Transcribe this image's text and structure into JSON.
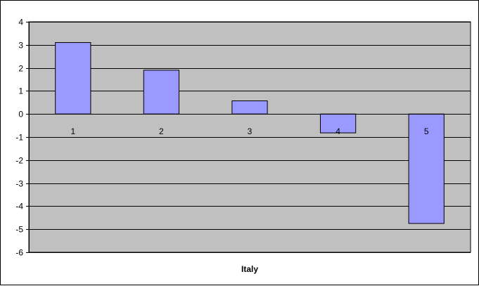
{
  "chart_data": {
    "type": "bar",
    "title": "",
    "xlabel": "Italy",
    "ylabel": "",
    "categories": [
      "1",
      "2",
      "3",
      "4",
      "5"
    ],
    "values": [
      3.1,
      1.9,
      0.57,
      -0.82,
      -4.75
    ],
    "ylim": [
      -6,
      4
    ],
    "yticks": [
      4,
      3,
      2,
      1,
      0,
      -1,
      -2,
      -3,
      -4,
      -5,
      -6
    ],
    "grid": true,
    "legend": "none",
    "colors": {
      "bar_fill": "#9999ff",
      "plot_background": "#c0c0c0",
      "gridline": "#000000",
      "axis": "#000000"
    }
  }
}
